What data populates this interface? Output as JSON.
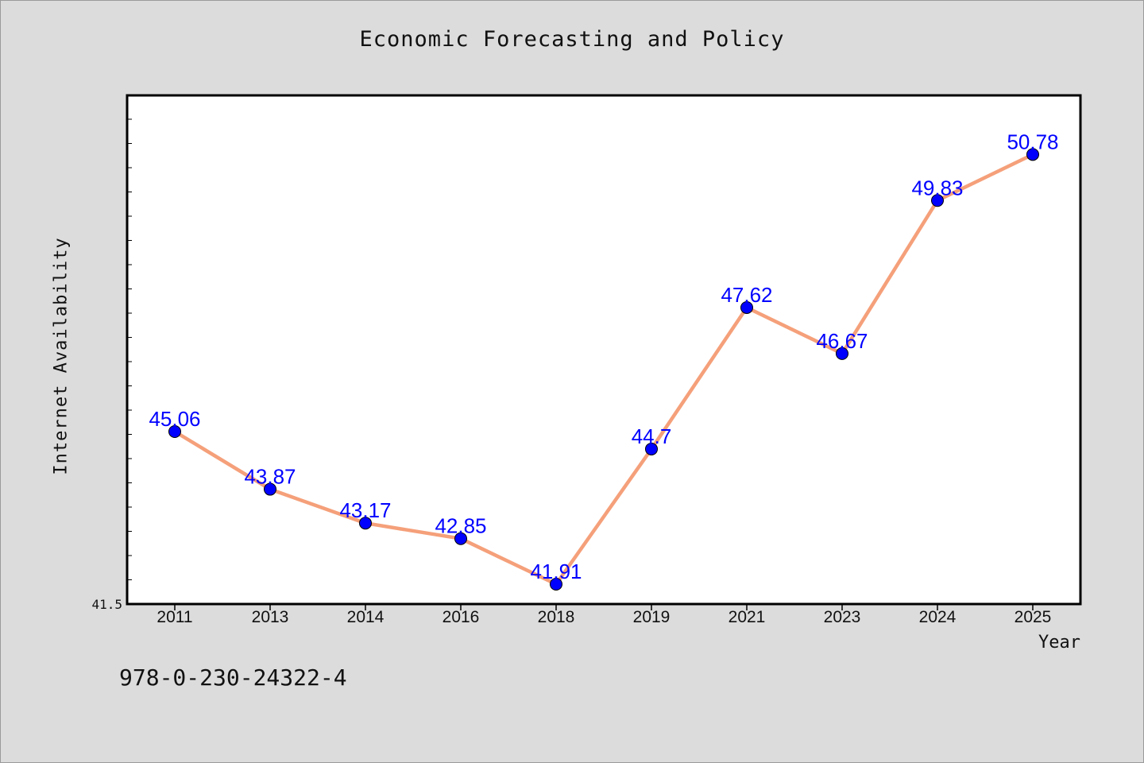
{
  "title": "Economic Forecasting and Policy",
  "isbn": "978-0-230-24322-4",
  "colors": {
    "line": "#f5a07a",
    "marker": "#0000ff",
    "label": "#0000ff",
    "background": "#dcdcdc",
    "plot_bg": "#ffffff"
  },
  "chart_data": {
    "type": "line",
    "title": "Economic Forecasting and Policy",
    "xlabel": "Year",
    "ylabel": "Internet Availability",
    "categories": [
      "2011",
      "2013",
      "2014",
      "2016",
      "2018",
      "2019",
      "2021",
      "2023",
      "2024",
      "2025"
    ],
    "values": [
      45.06,
      43.87,
      43.17,
      42.85,
      41.91,
      44.7,
      47.62,
      46.67,
      49.83,
      50.78
    ],
    "value_labels": [
      "45.06",
      "43.87",
      "43.17",
      "42.85",
      "41.91",
      "44.7",
      "47.62",
      "46.67",
      "49.83",
      "50.78"
    ],
    "ylim": [
      41.5,
      52
    ],
    "ytick_labels": [
      "41.5"
    ],
    "grid": false,
    "legend": "none"
  }
}
